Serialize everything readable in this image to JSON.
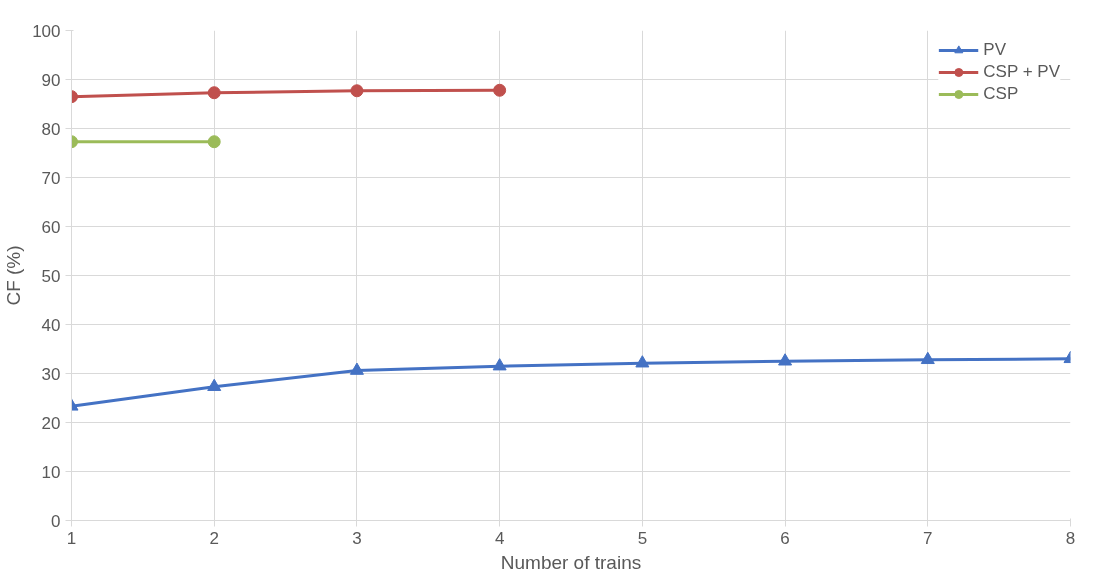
{
  "chart_data": {
    "type": "line",
    "xlabel": "Number of trains",
    "ylabel": "CF (%)",
    "x": [
      1,
      2,
      3,
      4,
      5,
      6,
      7,
      8
    ],
    "series": [
      {
        "name": "PV",
        "color": "#4472c4",
        "marker": "triangle",
        "values": [
          23.3,
          27.3,
          30.6,
          31.5,
          32.1,
          32.5,
          32.8,
          33.0
        ]
      },
      {
        "name": "CSP + PV",
        "color": "#c0504d",
        "marker": "circle",
        "values": [
          86.5,
          87.3,
          87.7,
          87.8,
          null,
          null,
          null,
          null
        ]
      },
      {
        "name": "CSP",
        "color": "#9bbb59",
        "marker": "circle",
        "values": [
          77.3,
          77.3,
          null,
          null,
          null,
          null,
          null,
          null
        ]
      }
    ],
    "xlim": [
      1,
      8
    ],
    "xticks": [
      1,
      2,
      3,
      4,
      5,
      6,
      7,
      8
    ],
    "ylim": [
      0,
      100
    ],
    "yticks": [
      0,
      10,
      20,
      30,
      40,
      50,
      60,
      70,
      80,
      90,
      100
    ],
    "grid": true,
    "legend": "top right",
    "line_style": "solid"
  }
}
